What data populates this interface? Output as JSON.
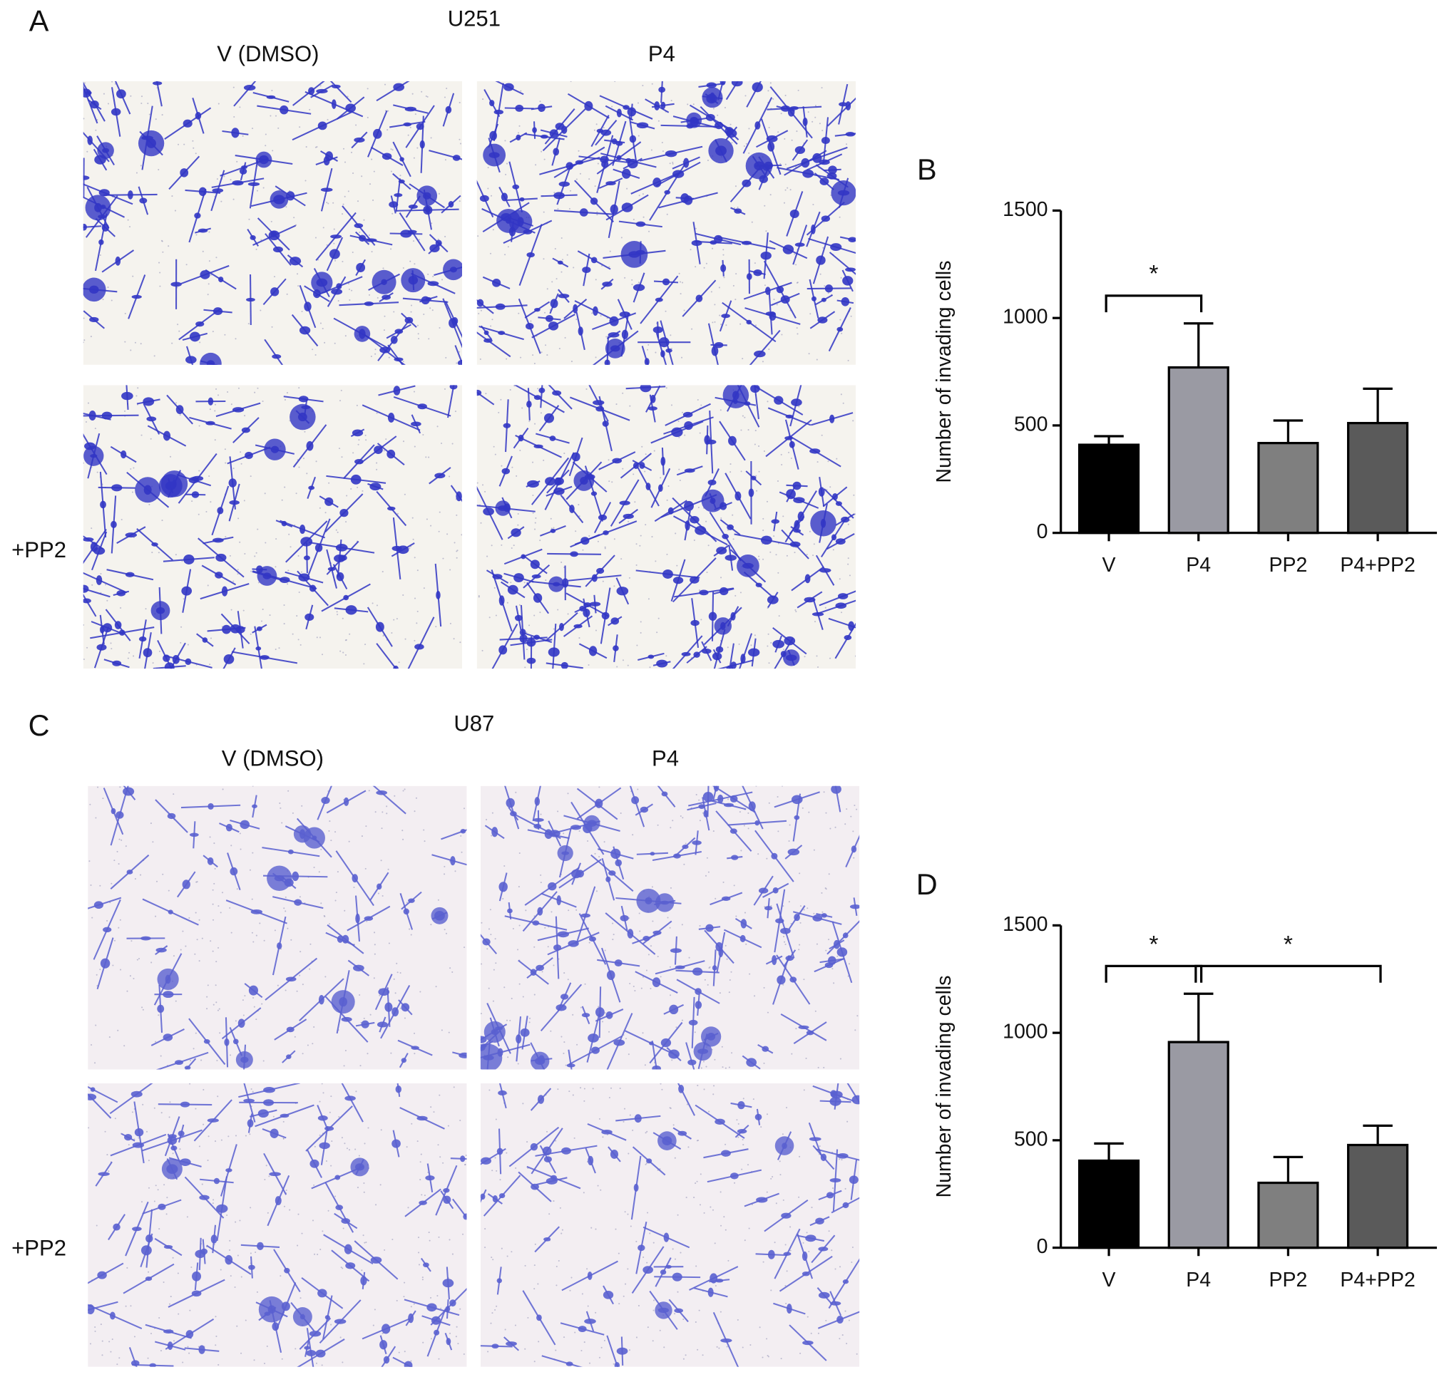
{
  "figure": {
    "panels": [
      {
        "label": "A",
        "cell_line": "U251",
        "columns": [
          "V (DMSO)",
          "P4"
        ],
        "row_label": "+PP2"
      },
      {
        "label": "C",
        "cell_line": "U87",
        "columns": [
          "V (DMSO)",
          "P4"
        ],
        "row_label": "+PP2"
      }
    ]
  },
  "chart_data": [
    {
      "type": "bar",
      "panel_label": "B",
      "ylabel": "Number of invading cells",
      "categories": [
        "V",
        "P4",
        "PP2",
        "P4+PP2"
      ],
      "values": [
        410,
        770,
        418,
        511
      ],
      "errors": [
        40,
        205,
        105,
        160
      ],
      "colors": [
        "#000000",
        "#9a9aa3",
        "#7f7f7f",
        "#5a5a5a"
      ],
      "ylim": [
        0,
        1500
      ],
      "yticks": [
        0,
        500,
        1000,
        1500
      ],
      "significance": [
        {
          "from": 0,
          "to": 1,
          "label": "*"
        }
      ]
    },
    {
      "type": "bar",
      "panel_label": "D",
      "ylabel": "Number of invading cells",
      "categories": [
        "V",
        "P4",
        "PP2",
        "P4+PP2"
      ],
      "values": [
        405,
        957,
        302,
        478
      ],
      "errors": [
        80,
        225,
        120,
        90
      ],
      "colors": [
        "#000000",
        "#9a9aa3",
        "#7f7f7f",
        "#5a5a5a"
      ],
      "ylim": [
        0,
        1500
      ],
      "yticks": [
        0,
        500,
        1000,
        1500
      ],
      "significance": [
        {
          "from": 0,
          "to": 1,
          "label": "*"
        },
        {
          "from": 1,
          "to": 3,
          "label": "*"
        }
      ]
    }
  ]
}
